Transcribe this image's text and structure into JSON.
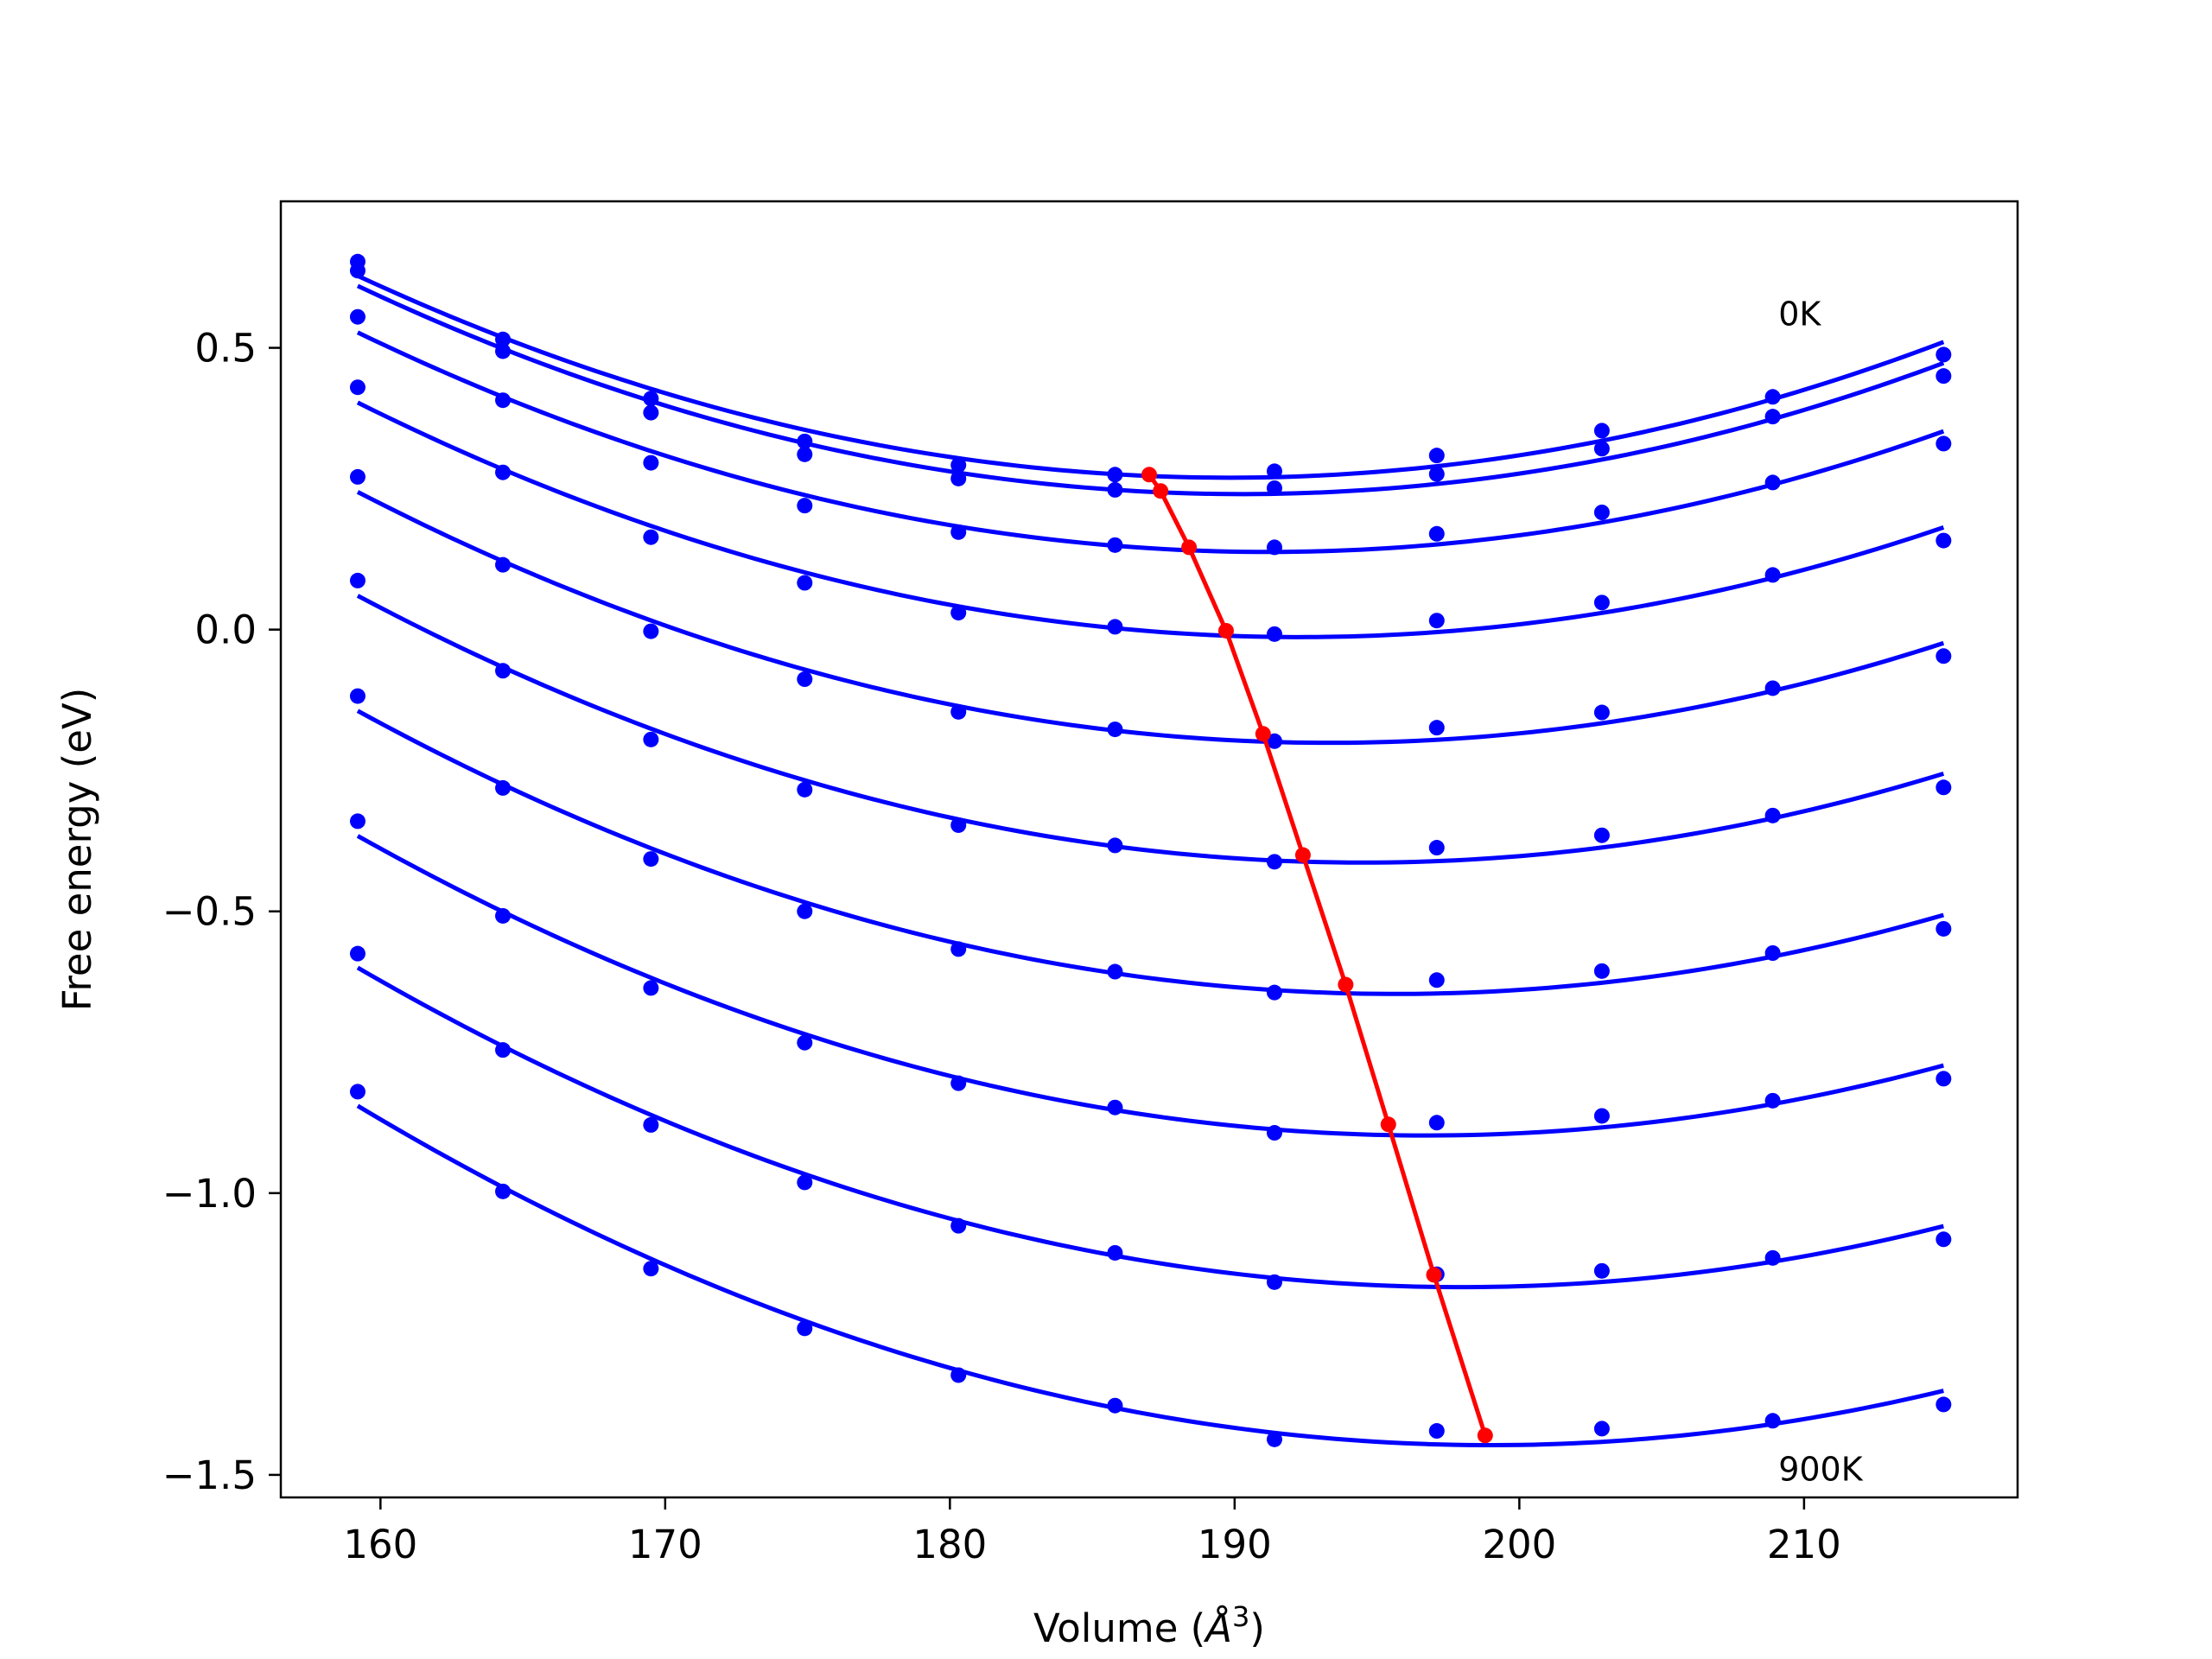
{
  "chart_data": {
    "type": "line",
    "title": "",
    "xlabel": "Volume (",
    "xlabel_unit_symbol": "Å",
    "xlabel_exponent": "3",
    "xlabel_close": ")",
    "ylabel": "Free energy (eV)",
    "xlim": [
      156.5,
      217.5
    ],
    "ylim": [
      -1.54,
      0.76
    ],
    "x_ticks": [
      160,
      170,
      180,
      190,
      200,
      210
    ],
    "x_tick_labels": [
      "160",
      "170",
      "180",
      "190",
      "200",
      "210"
    ],
    "y_ticks": [
      0.5,
      0.0,
      -0.5,
      -1.0,
      -1.5
    ],
    "y_tick_labels": [
      "0.5",
      "0.0",
      "−0.5",
      "−1.0",
      "−1.5"
    ],
    "grid": false,
    "annotations": [
      {
        "text": "0K",
        "x": 209.1,
        "y": 0.54
      },
      {
        "text": "900K",
        "x": 209.1,
        "y": -1.51
      }
    ],
    "colors": {
      "series": "#0000ff",
      "equilibrium": "#ff0000"
    },
    "volumes": [
      159.2,
      164.3,
      169.5,
      174.9,
      180.3,
      185.8,
      191.4,
      197.1,
      202.9,
      208.9,
      214.9
    ],
    "series": [
      {
        "label_index": 0,
        "values": [
          0.653,
          0.515,
          0.41,
          0.334,
          0.292,
          0.275,
          0.281,
          0.309,
          0.353,
          0.413,
          0.488
        ]
      },
      {
        "values": [
          0.637,
          0.494,
          0.385,
          0.311,
          0.268,
          0.248,
          0.251,
          0.276,
          0.321,
          0.378,
          0.45
        ]
      },
      {
        "values": [
          0.555,
          0.407,
          0.296,
          0.22,
          0.173,
          0.15,
          0.146,
          0.17,
          0.208,
          0.261,
          0.33
        ]
      },
      {
        "values": [
          0.43,
          0.279,
          0.164,
          0.083,
          0.03,
          0.005,
          -0.008,
          0.016,
          0.048,
          0.097,
          0.158
        ]
      },
      {
        "values": [
          0.271,
          0.115,
          -0.003,
          -0.088,
          -0.146,
          -0.177,
          -0.198,
          -0.174,
          -0.147,
          -0.104,
          -0.047
        ]
      },
      {
        "values": [
          0.087,
          -0.073,
          -0.195,
          -0.284,
          -0.347,
          -0.383,
          -0.412,
          -0.387,
          -0.365,
          -0.33,
          -0.28
        ]
      },
      {
        "values": [
          -0.118,
          -0.281,
          -0.407,
          -0.5,
          -0.567,
          -0.607,
          -0.644,
          -0.622,
          -0.606,
          -0.574,
          -0.531
        ]
      },
      {
        "values": [
          -0.34,
          -0.508,
          -0.636,
          -0.733,
          -0.805,
          -0.848,
          -0.893,
          -0.875,
          -0.863,
          -0.836,
          -0.797
        ]
      },
      {
        "values": [
          -0.575,
          -0.746,
          -0.879,
          -0.981,
          -1.058,
          -1.106,
          -1.158,
          -1.144,
          -1.138,
          -1.115,
          -1.082
        ]
      },
      {
        "label_index": 1,
        "values": [
          -0.82,
          -0.997,
          -1.134,
          -1.24,
          -1.323,
          -1.377,
          -1.437,
          -1.422,
          -1.418,
          -1.404,
          -1.375
        ]
      }
    ],
    "equilibrium": {
      "x": [
        187.0,
        187.4,
        188.4,
        189.7,
        191.0,
        192.4,
        193.9,
        195.4,
        197.0,
        198.8
      ],
      "y": [
        0.275,
        0.246,
        0.146,
        -0.002,
        -0.185,
        -0.4,
        -0.63,
        -0.878,
        -1.145,
        -1.43
      ]
    }
  }
}
